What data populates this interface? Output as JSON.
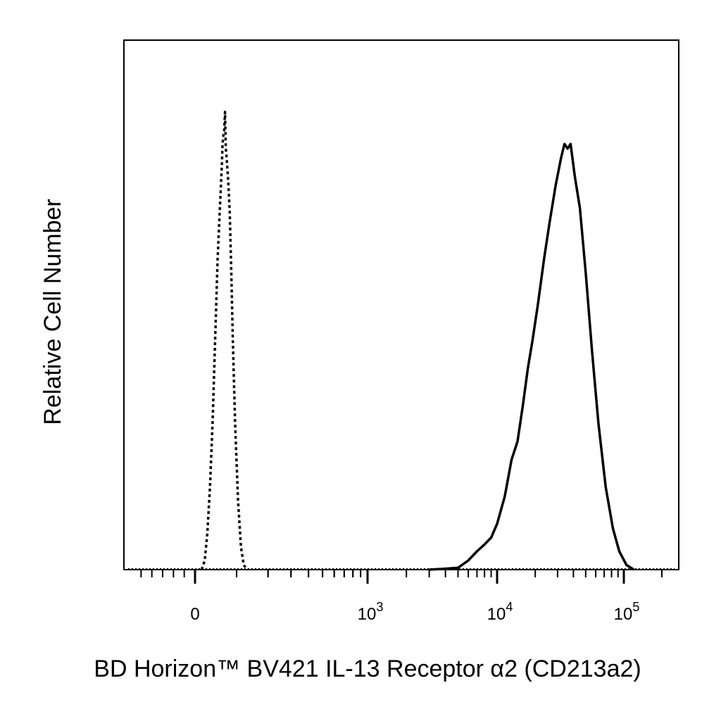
{
  "chart_data": {
    "type": "line",
    "title": "",
    "xlabel": "BD Horizon™ BV421 IL-13 Receptor α2 (CD213a2)",
    "ylabel": "Relative Cell Number",
    "x_scale": "biexponential",
    "x_tick_labels": [
      {
        "base": "0",
        "exp": ""
      },
      {
        "base": "10",
        "exp": "3"
      },
      {
        "base": "10",
        "exp": "4"
      },
      {
        "base": "10",
        "exp": "5"
      }
    ],
    "x_tick_values": [
      0,
      1000,
      10000,
      100000
    ],
    "ylim": [
      0,
      1
    ],
    "grid": false,
    "legend": "none",
    "series": [
      {
        "style": "dotted",
        "color": "#000000",
        "points": [
          [
            15,
            0.0
          ],
          [
            22,
            0.02
          ],
          [
            28,
            0.08
          ],
          [
            34,
            0.18
          ],
          [
            40,
            0.32
          ],
          [
            46,
            0.5
          ],
          [
            52,
            0.68
          ],
          [
            58,
            0.8
          ],
          [
            62,
            0.88
          ],
          [
            64,
            0.93
          ],
          [
            66,
            0.95
          ],
          [
            68,
            0.96
          ],
          [
            70,
            1.0
          ],
          [
            72,
            0.92
          ],
          [
            74,
            0.9
          ],
          [
            78,
            0.85
          ],
          [
            82,
            0.78
          ],
          [
            86,
            0.65
          ],
          [
            90,
            0.5
          ],
          [
            96,
            0.32
          ],
          [
            104,
            0.15
          ],
          [
            112,
            0.05
          ],
          [
            120,
            0.01
          ],
          [
            130,
            0.0
          ]
        ]
      },
      {
        "style": "solid",
        "color": "#000000",
        "points": [
          [
            3000,
            0.0
          ],
          [
            4000,
            0.002
          ],
          [
            5000,
            0.004
          ],
          [
            6000,
            0.02
          ],
          [
            7000,
            0.04
          ],
          [
            8000,
            0.055
          ],
          [
            9000,
            0.07
          ],
          [
            10000,
            0.1
          ],
          [
            11500,
            0.16
          ],
          [
            13000,
            0.24
          ],
          [
            14500,
            0.28
          ],
          [
            16000,
            0.36
          ],
          [
            17500,
            0.44
          ],
          [
            19000,
            0.5
          ],
          [
            21000,
            0.58
          ],
          [
            23500,
            0.68
          ],
          [
            26000,
            0.76
          ],
          [
            29000,
            0.84
          ],
          [
            32000,
            0.9
          ],
          [
            34000,
            0.93
          ],
          [
            36000,
            0.92
          ],
          [
            38000,
            0.93
          ],
          [
            41000,
            0.86
          ],
          [
            45000,
            0.79
          ],
          [
            50000,
            0.65
          ],
          [
            56000,
            0.48
          ],
          [
            63000,
            0.32
          ],
          [
            72000,
            0.18
          ],
          [
            82000,
            0.09
          ],
          [
            92000,
            0.04
          ],
          [
            105000,
            0.01
          ],
          [
            120000,
            0.0
          ]
        ]
      }
    ]
  }
}
